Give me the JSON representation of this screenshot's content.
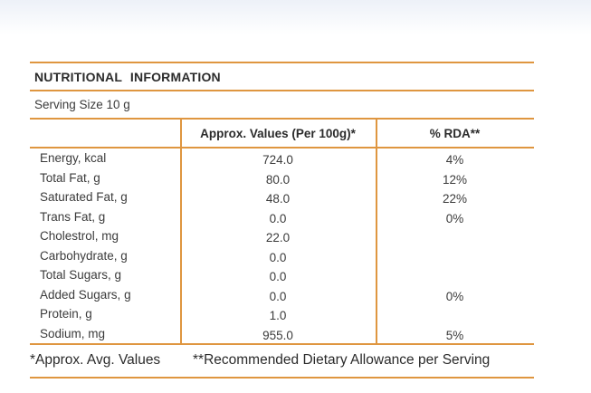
{
  "label": {
    "title": "NUTRITIONAL INFORMATION",
    "serving_size": "Serving Size 10 g",
    "table": {
      "columns": [
        "",
        "Approx. Values (Per 100g)*",
        "% RDA**"
      ],
      "rows": [
        {
          "nutrient": "Energy, kcal",
          "value": "724.0",
          "rda": "4%"
        },
        {
          "nutrient": "Total Fat, g",
          "value": "80.0",
          "rda": "12%"
        },
        {
          "nutrient": "Saturated Fat, g",
          "value": "48.0",
          "rda": "22%"
        },
        {
          "nutrient": "Trans Fat, g",
          "value": "0.0",
          "rda": "0%"
        },
        {
          "nutrient": "Cholestrol, mg",
          "value": "22.0",
          "rda": ""
        },
        {
          "nutrient": "Carbohydrate, g",
          "value": "0.0",
          "rda": ""
        },
        {
          "nutrient": "Total Sugars, g",
          "value": "0.0",
          "rda": ""
        },
        {
          "nutrient": "Added Sugars, g",
          "value": "0.0",
          "rda": "0%"
        },
        {
          "nutrient": "Protein, g",
          "value": "1.0",
          "rda": ""
        },
        {
          "nutrient": "Sodium, mg",
          "value": "955.0",
          "rda": "5%"
        }
      ]
    },
    "footnotes": {
      "values_note": "*Approx. Avg. Values",
      "rda_note": "**Recommended Dietary Allowance per Serving"
    }
  },
  "colors": {
    "accent": "#DF9640",
    "text": "#3B3B3B",
    "heading": "#2B2B2B",
    "top-grad": "#EDF1F8"
  }
}
